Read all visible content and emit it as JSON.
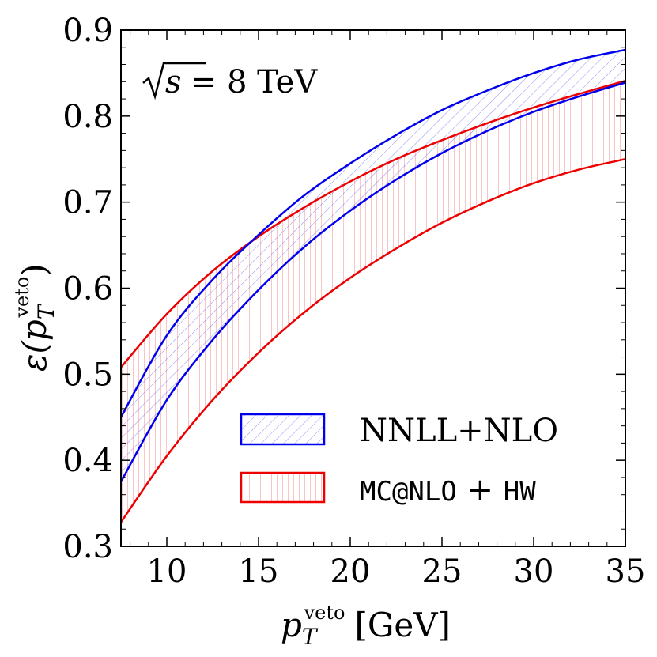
{
  "chart_data": {
    "type": "area",
    "annotation": {
      "sqrt_symbol": "√",
      "variable": "s",
      "rest": " = 8 TeV"
    },
    "xlabel": {
      "main": "p",
      "sub": "T",
      "sup": "veto",
      "unit": "[GeV]"
    },
    "ylabel": {
      "main": "ε(p",
      "sub": "T",
      "sup": "veto",
      "close": ")"
    },
    "xlim": [
      7.5,
      35
    ],
    "ylim": [
      0.3,
      0.9
    ],
    "x_ticks": [
      10,
      15,
      20,
      25,
      30,
      35
    ],
    "x_tick_labels": [
      "10",
      "15",
      "20",
      "25",
      "30",
      "35"
    ],
    "y_ticks": [
      0.3,
      0.4,
      0.5,
      0.6,
      0.7,
      0.8,
      0.9
    ],
    "y_tick_labels": [
      "0.3",
      "0.4",
      "0.5",
      "0.6",
      "0.7",
      "0.8",
      "0.9"
    ],
    "series": [
      {
        "name": "NNLL+NLO",
        "color": "#0000ee",
        "hatch": "diagonal",
        "x": [
          7.5,
          10,
          12.5,
          15,
          17.5,
          20,
          22.5,
          25,
          27.5,
          30,
          32.5,
          35
        ],
        "upper": [
          0.45,
          0.545,
          0.61,
          0.662,
          0.708,
          0.745,
          0.778,
          0.807,
          0.83,
          0.85,
          0.866,
          0.877
        ],
        "lower": [
          0.375,
          0.47,
          0.54,
          0.598,
          0.648,
          0.69,
          0.726,
          0.757,
          0.783,
          0.805,
          0.823,
          0.839
        ]
      },
      {
        "name_mono_1": "MC@NLO",
        "name_plus": " + ",
        "name_mono_2": "HW",
        "color": "#ee0000",
        "hatch": "vertical",
        "x": [
          7.5,
          10,
          12.5,
          15,
          17.5,
          20,
          22.5,
          25,
          27.5,
          30,
          32.5,
          35
        ],
        "upper": [
          0.508,
          0.57,
          0.62,
          0.66,
          0.694,
          0.724,
          0.75,
          0.772,
          0.792,
          0.81,
          0.826,
          0.841
        ],
        "lower": [
          0.328,
          0.405,
          0.47,
          0.525,
          0.572,
          0.612,
          0.646,
          0.676,
          0.701,
          0.722,
          0.738,
          0.75
        ]
      }
    ]
  }
}
